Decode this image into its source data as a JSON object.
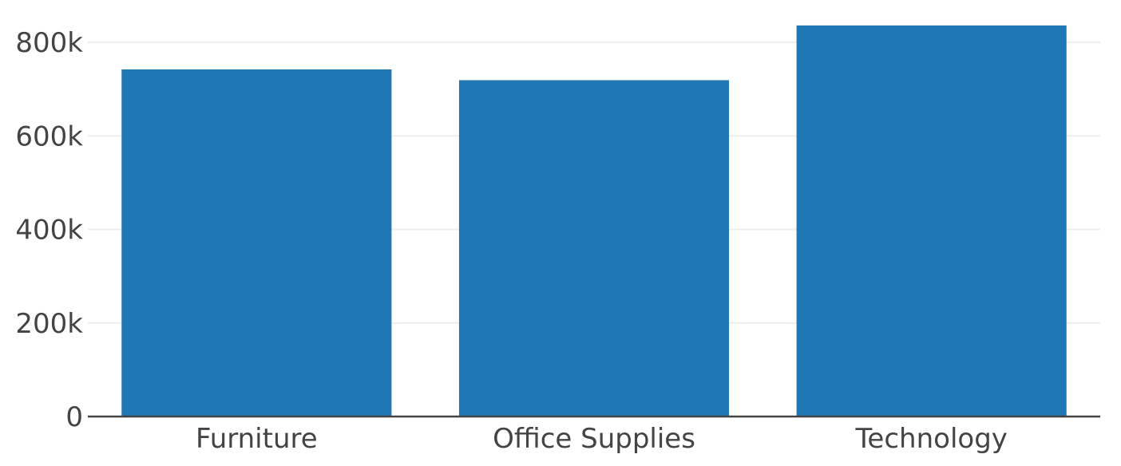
{
  "chart_data": {
    "type": "bar",
    "categories": [
      "Furniture",
      "Office Supplies",
      "Technology"
    ],
    "values": [
      742000,
      719000,
      836000
    ],
    "ylim": [
      0,
      870000
    ],
    "yticks": [
      0,
      200000,
      400000,
      600000,
      800000
    ],
    "ytick_labels": [
      "0",
      "200k",
      "400k",
      "600k",
      "800k"
    ],
    "grid": true,
    "colors": {
      "bar": "#1f77b4",
      "grid": "#eeeeee",
      "axis": "#444444",
      "text": "#444444"
    }
  }
}
